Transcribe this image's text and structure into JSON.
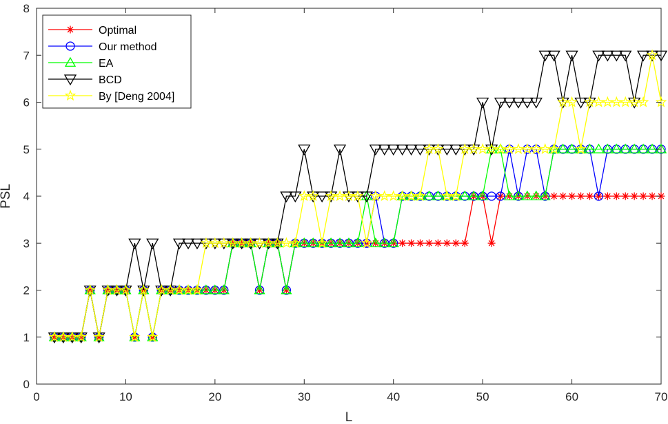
{
  "chart_data": {
    "type": "line",
    "xlabel": "L",
    "ylabel": "PSL",
    "xlim": [
      0,
      70
    ],
    "ylim": [
      0,
      8
    ],
    "xticks": [
      0,
      10,
      20,
      30,
      40,
      50,
      60,
      70
    ],
    "yticks": [
      0,
      1,
      2,
      3,
      4,
      5,
      6,
      7,
      8
    ],
    "grid": false,
    "legend_position": "top-left",
    "x": [
      2,
      3,
      4,
      5,
      6,
      7,
      8,
      9,
      10,
      11,
      12,
      13,
      14,
      15,
      16,
      17,
      18,
      19,
      20,
      21,
      22,
      23,
      24,
      25,
      26,
      27,
      28,
      29,
      30,
      31,
      32,
      33,
      34,
      35,
      36,
      37,
      38,
      39,
      40,
      41,
      42,
      43,
      44,
      45,
      46,
      47,
      48,
      49,
      50,
      51,
      52,
      53,
      54,
      55,
      56,
      57,
      58,
      59,
      60,
      61,
      62,
      63,
      64,
      65,
      66,
      67,
      68,
      69,
      70
    ],
    "series": [
      {
        "name": "Optimal",
        "color": "#ff0000",
        "marker": "asterisk",
        "values": [
          1,
          1,
          1,
          1,
          2,
          1,
          2,
          2,
          2,
          1,
          2,
          1,
          2,
          2,
          2,
          2,
          2,
          2,
          2,
          2,
          3,
          3,
          3,
          2,
          3,
          3,
          2,
          3,
          3,
          3,
          3,
          3,
          3,
          3,
          3,
          3,
          3,
          3,
          3,
          3,
          3,
          3,
          3,
          3,
          3,
          3,
          3,
          4,
          4,
          3,
          4,
          4,
          4,
          4,
          4,
          4,
          4,
          4,
          4,
          4,
          4,
          4,
          4,
          4,
          4,
          4,
          4,
          4,
          4
        ]
      },
      {
        "name": "Our method",
        "color": "#0000ff",
        "marker": "circle",
        "values": [
          1,
          1,
          1,
          1,
          2,
          1,
          2,
          2,
          2,
          1,
          2,
          1,
          2,
          2,
          2,
          2,
          2,
          2,
          2,
          2,
          3,
          3,
          3,
          2,
          3,
          3,
          2,
          3,
          3,
          3,
          3,
          3,
          3,
          3,
          3,
          3,
          4,
          3,
          3,
          4,
          4,
          4,
          4,
          4,
          4,
          4,
          4,
          4,
          4,
          4,
          4,
          5,
          4,
          5,
          5,
          4,
          5,
          5,
          5,
          5,
          5,
          4,
          5,
          5,
          5,
          5,
          5,
          5,
          5
        ]
      },
      {
        "name": "EA",
        "color": "#00ff00",
        "marker": "triangle-up",
        "values": [
          1,
          1,
          1,
          1,
          2,
          1,
          2,
          2,
          2,
          1,
          2,
          1,
          2,
          2,
          2,
          2,
          2,
          2,
          2,
          2,
          3,
          3,
          3,
          2,
          3,
          3,
          2,
          3,
          3,
          3,
          3,
          3,
          3,
          3,
          3,
          4,
          3,
          3,
          3,
          4,
          4,
          4,
          4,
          4,
          4,
          4,
          4,
          4,
          4,
          5,
          5,
          4,
          4,
          4,
          4,
          4,
          5,
          5,
          5,
          5,
          5,
          5,
          5,
          5,
          5,
          5,
          5,
          5,
          5
        ]
      },
      {
        "name": "BCD",
        "color": "#000000",
        "marker": "triangle-down",
        "values": [
          1,
          1,
          1,
          1,
          2,
          1,
          2,
          2,
          2,
          3,
          2,
          3,
          2,
          2,
          3,
          3,
          3,
          3,
          3,
          3,
          3,
          3,
          3,
          3,
          3,
          3,
          4,
          4,
          5,
          4,
          4,
          4,
          5,
          4,
          4,
          4,
          5,
          5,
          5,
          5,
          5,
          5,
          5,
          5,
          5,
          5,
          5,
          5,
          6,
          5,
          6,
          6,
          6,
          6,
          6,
          7,
          7,
          6,
          7,
          6,
          6,
          7,
          7,
          7,
          7,
          6,
          7,
          7,
          7
        ]
      },
      {
        "name": "By [Deng 2004]",
        "color": "#ffff00",
        "marker": "star",
        "values": [
          1,
          1,
          1,
          1,
          2,
          1,
          2,
          2,
          2,
          1,
          2,
          1,
          2,
          2,
          2,
          2,
          2,
          3,
          3,
          3,
          3,
          3,
          3,
          3,
          3,
          3,
          3,
          3,
          4,
          4,
          3,
          4,
          4,
          4,
          4,
          3,
          4,
          4,
          4,
          4,
          4,
          4,
          5,
          5,
          4,
          4,
          5,
          5,
          5,
          5,
          5,
          5,
          5,
          5,
          5,
          5,
          5,
          6,
          6,
          5,
          6,
          6,
          6,
          6,
          6,
          6,
          6,
          7,
          6
        ]
      }
    ]
  }
}
